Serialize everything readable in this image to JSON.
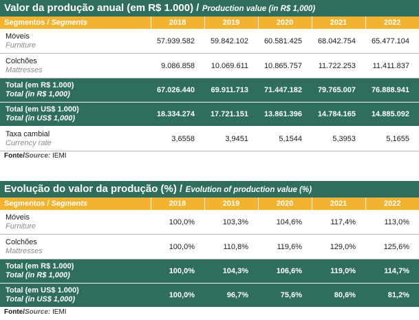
{
  "table1": {
    "title_pt": "Valor da produção anual (em R$ 1.000) /",
    "title_en": "Production value (in R$ 1,000)",
    "header": {
      "seg_pt": "Segmentos /",
      "seg_en": "Segments",
      "years": [
        "2018",
        "2019",
        "2020",
        "2021",
        "2022"
      ]
    },
    "rows": [
      {
        "pt": "Móveis",
        "en": "Furniture",
        "values": [
          "57.939.582",
          "59.842.102",
          "60.581.425",
          "68.042.754",
          "65.477.104"
        ]
      },
      {
        "pt": "Colchões",
        "en": "Mattresses",
        "values": [
          "9.086.858",
          "10.069.611",
          "10.865.757",
          "11.722.253",
          "11.411.837"
        ]
      },
      {
        "pt": "Total (em R$ 1.000)",
        "en": "Total (in R$ 1,000)",
        "values": [
          "67.026.440",
          "69.911.713",
          "71.447.182",
          "79.765.007",
          "76.888.941"
        ]
      },
      {
        "pt": "Total (em US$ 1.000)",
        "en": "Total (in US$ 1,000)",
        "values": [
          "18.334.274",
          "17.721.151",
          "13.861.396",
          "14.784.165",
          "14.885.092"
        ]
      },
      {
        "pt": "Taxa cambial",
        "en": "Currency rate",
        "values": [
          "3,6558",
          "3,9451",
          "5,1544",
          "5,3953",
          "5,1655"
        ]
      }
    ],
    "source": {
      "label_pt": "Fonte/",
      "label_en": "Source:",
      "value": " IEMI"
    }
  },
  "table2": {
    "title_pt": "Evolução do valor da produção (%) /",
    "title_en": "Evolution of production value (%)",
    "header": {
      "seg_pt": "Segmentos /",
      "seg_en": "Segments",
      "years": [
        "2018",
        "2019",
        "2020",
        "2021",
        "2022"
      ]
    },
    "rows": [
      {
        "pt": "Móveis",
        "en": "Furniture",
        "values": [
          "100,0%",
          "103,3%",
          "104,6%",
          "117,4%",
          "113,0%"
        ]
      },
      {
        "pt": "Colchões",
        "en": "Mattresses",
        "values": [
          "100,0%",
          "110,8%",
          "119,6%",
          "129,0%",
          "125,6%"
        ]
      },
      {
        "pt": "Total (em R$ 1.000)",
        "en": "Total (in R$ 1,000)",
        "values": [
          "100,0%",
          "104,3%",
          "106,6%",
          "119,0%",
          "114,7%"
        ]
      },
      {
        "pt": "Total (em US$ 1.000)",
        "en": "Total (in US$ 1,000)",
        "values": [
          "100,0%",
          "96,7%",
          "75,6%",
          "80,6%",
          "81,2%"
        ]
      }
    ],
    "source": {
      "label_pt": "Fonte/",
      "label_en": "Source:",
      "value": " IEMI"
    }
  }
}
